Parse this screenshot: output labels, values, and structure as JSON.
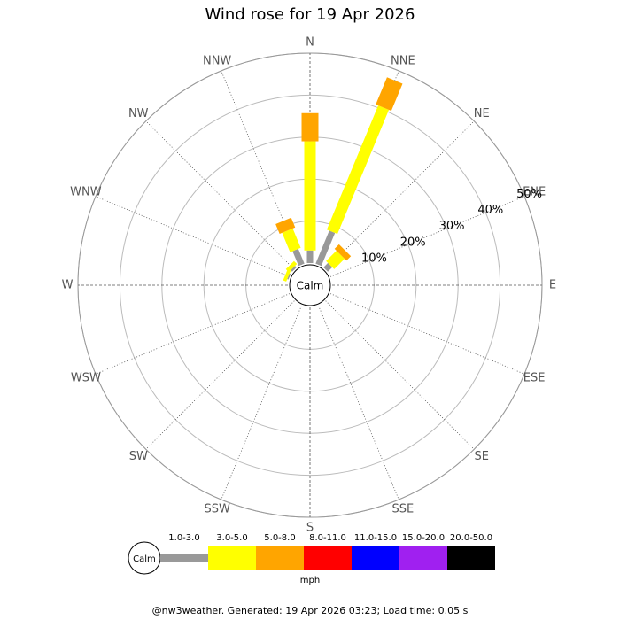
{
  "chart_data": {
    "type": "wind-rose",
    "title": "Wind rose for 19 Apr 2026",
    "directions": [
      "N",
      "NNE",
      "NE",
      "ENE",
      "E",
      "ESE",
      "SE",
      "SSE",
      "S",
      "SSW",
      "SW",
      "WSW",
      "W",
      "WNW",
      "NW",
      "NNW"
    ],
    "calm_label": "Calm",
    "rlim": [
      0,
      50
    ],
    "rticks": [
      {
        "value": 10,
        "label": "10%"
      },
      {
        "value": 20,
        "label": "20%"
      },
      {
        "value": 30,
        "label": "30%"
      },
      {
        "value": 40,
        "label": "40%"
      },
      {
        "value": 50,
        "label": "50%"
      }
    ],
    "series": [
      {
        "name": "1.0-3.0",
        "color": "#999999",
        "values": [
          3,
          8.5,
          1.5,
          0,
          0,
          0,
          0,
          0,
          0,
          0,
          0,
          0,
          0,
          0.3,
          0.5,
          3.8
        ]
      },
      {
        "name": "3.0-5.0",
        "color": "#ffff00",
        "values": [
          26,
          32,
          3.5,
          0,
          0,
          0,
          0,
          0,
          0,
          0,
          0,
          0,
          0,
          0.8,
          1,
          5
        ]
      },
      {
        "name": "5.0-8.0",
        "color": "#ffa500",
        "values": [
          6.7,
          7,
          1.5,
          0,
          0,
          0,
          0,
          0,
          0,
          0,
          0,
          0,
          0,
          0,
          0,
          2.5
        ]
      },
      {
        "name": "8.0-11.0",
        "color": "#ff0000",
        "values": [
          0,
          0,
          0,
          0,
          0,
          0,
          0,
          0,
          0,
          0,
          0,
          0,
          0,
          0,
          0,
          0
        ]
      },
      {
        "name": "11.0-15.0",
        "color": "#0000ff",
        "values": [
          0,
          0,
          0,
          0,
          0,
          0,
          0,
          0,
          0,
          0,
          0,
          0,
          0,
          0,
          0,
          0
        ]
      },
      {
        "name": "15.0-20.0",
        "color": "#a020f0",
        "values": [
          0,
          0,
          0,
          0,
          0,
          0,
          0,
          0,
          0,
          0,
          0,
          0,
          0,
          0,
          0,
          0
        ]
      },
      {
        "name": "20.0-50.0",
        "color": "#000000",
        "values": [
          0,
          0,
          0,
          0,
          0,
          0,
          0,
          0,
          0,
          0,
          0,
          0,
          0,
          0,
          0,
          0
        ]
      }
    ],
    "unit": "mph",
    "footer": "@nw3weather. Generated: 19 Apr 2026 03:23; Load time: 0.05 s"
  }
}
